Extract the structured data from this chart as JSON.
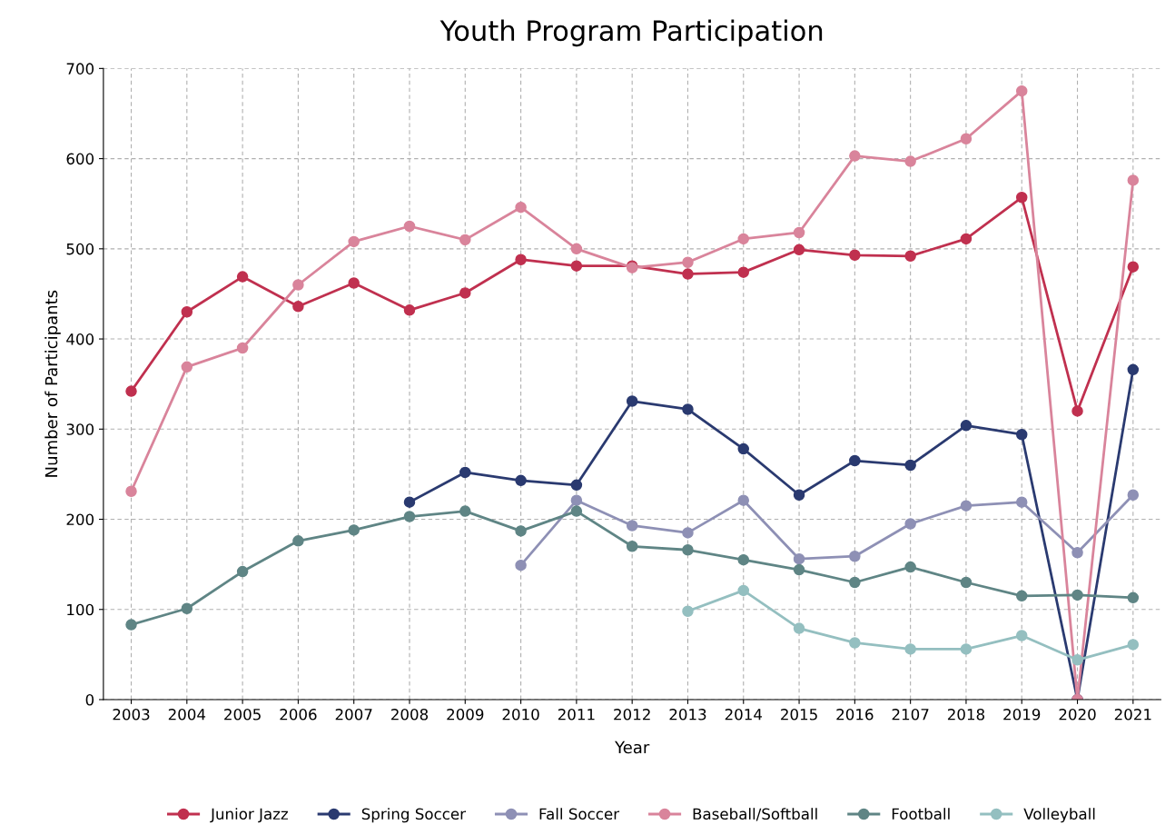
{
  "chart_data": {
    "type": "line",
    "title": "Youth Program Participation",
    "xlabel": "Year",
    "ylabel": "Number of Participants",
    "categories": [
      "2003",
      "2004",
      "2005",
      "2006",
      "2007",
      "2008",
      "2009",
      "2010",
      "2011",
      "2012",
      "2013",
      "2014",
      "2015",
      "2016",
      "2107",
      "2018",
      "2019",
      "2020",
      "2021"
    ],
    "series": [
      {
        "name": "Junior Jazz",
        "color": "#c0304f",
        "values": [
          342,
          430,
          469,
          436,
          462,
          432,
          451,
          488,
          481,
          481,
          472,
          474,
          499,
          493,
          492,
          511,
          557,
          320,
          480
        ]
      },
      {
        "name": "Spring Soccer",
        "color": "#2a3a70",
        "values": [
          null,
          null,
          null,
          null,
          null,
          219,
          252,
          243,
          238,
          331,
          322,
          278,
          227,
          265,
          260,
          304,
          294,
          0,
          366
        ]
      },
      {
        "name": "Fall Soccer",
        "color": "#8e90b5",
        "values": [
          null,
          null,
          null,
          null,
          null,
          null,
          null,
          149,
          221,
          193,
          185,
          221,
          156,
          159,
          195,
          215,
          219,
          163,
          227
        ]
      },
      {
        "name": "Baseball/Softball",
        "color": "#d9849b",
        "values": [
          231,
          369,
          390,
          460,
          508,
          525,
          510,
          546,
          500,
          479,
          485,
          511,
          518,
          603,
          597,
          622,
          675,
          0,
          576
        ]
      },
      {
        "name": "Football",
        "color": "#5f8585",
        "values": [
          83,
          101,
          142,
          176,
          188,
          203,
          209,
          187,
          209,
          170,
          166,
          155,
          144,
          130,
          147,
          130,
          115,
          116,
          113
        ]
      },
      {
        "name": "Volleyball",
        "color": "#94bfc0",
        "values": [
          null,
          null,
          null,
          null,
          null,
          null,
          null,
          null,
          null,
          null,
          98,
          121,
          79,
          63,
          56,
          56,
          71,
          44,
          61
        ]
      }
    ],
    "ylim": [
      0,
      700
    ],
    "yticks": [
      0,
      100,
      200,
      300,
      400,
      500,
      600,
      700
    ],
    "grid": true,
    "legend": "bottom",
    "marker": "circle",
    "line_style": "solid"
  }
}
